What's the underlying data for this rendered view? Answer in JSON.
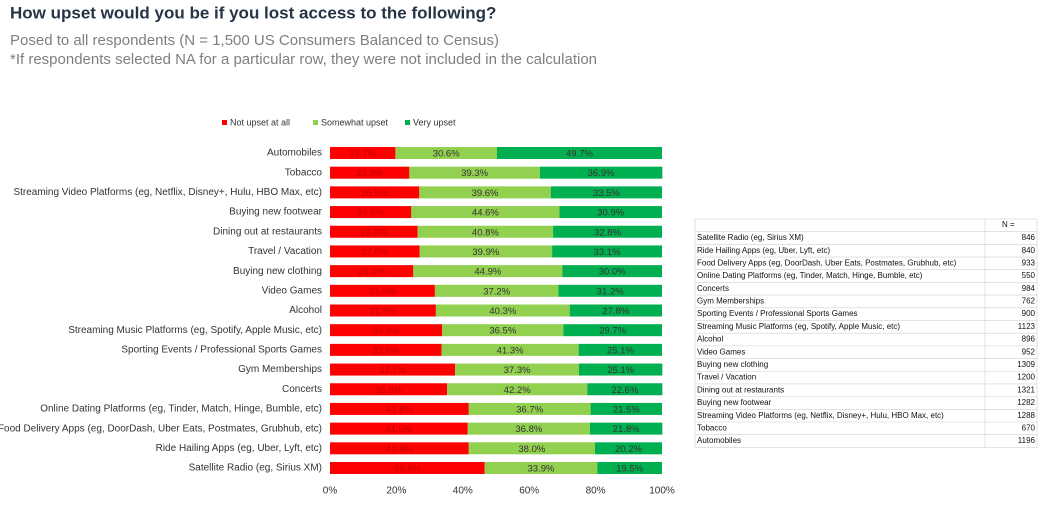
{
  "chart_data": {
    "type": "stacked-bar-horizontal",
    "title": "How upset would you be if you lost access to the following?",
    "subtitle": [
      "Posed to all respondents (N = 1,500 US Consumers Balanced to Census)",
      "*If respondents selected NA for a particular row, they were not included in the calculation"
    ],
    "categories": [
      "Automobiles",
      "Tobacco",
      "Streaming Video Platforms (eg, Netflix, Disney+, Hulu, HBO Max, etc)",
      "Buying new footwear",
      "Dining out at restaurants",
      "Travel / Vacation",
      "Buying new clothing",
      "Video Games",
      "Alcohol",
      "Streaming Music Platforms (eg, Spotify, Apple Music, etc)",
      "Sporting Events / Professional Sports Games",
      "Gym Memberships",
      "Concerts",
      "Online Dating Platforms (eg, Tinder, Match, Hinge, Bumble, etc)",
      "Food Delivery Apps (eg, DoorDash, Uber Eats, Postmates, Grubhub, etc)",
      "Ride Hailing Apps (eg, Uber, Lyft, etc)",
      "Satellite Radio (eg, Sirius XM)"
    ],
    "series": [
      {
        "name": "Not upset at all",
        "color": "#ff0000",
        "values": [
          19.7,
          23.9,
          26.9,
          24.5,
          26.4,
          27.0,
          25.1,
          31.6,
          31.9,
          33.8,
          33.6,
          37.7,
          35.3,
          41.8,
          41.5,
          41.8,
          46.6
        ],
        "value_labels": [
          "19.7%",
          "23.9%",
          "26.9%",
          "24.5%",
          "26.4%",
          "27.0%",
          "25.1%",
          "31.6%",
          "31.9%",
          "33.8%",
          "33.6%",
          "37.7%",
          "35.3%",
          "41.8%",
          "41.5%",
          "41.8%",
          "46.6%"
        ]
      },
      {
        "name": "Somewhat upset",
        "color": "#92d050",
        "values": [
          30.6,
          39.3,
          39.6,
          44.6,
          40.8,
          39.9,
          44.9,
          37.2,
          40.3,
          36.5,
          41.3,
          37.3,
          42.2,
          36.7,
          36.8,
          38.0,
          33.9
        ],
        "value_labels": [
          "30.6%",
          "39.3%",
          "39.6%",
          "44.6%",
          "40.8%",
          "39.9%",
          "44.9%",
          "37.2%",
          "40.3%",
          "36.5%",
          "41.3%",
          "37.3%",
          "42.2%",
          "36.7%",
          "36.8%",
          "38.0%",
          "33.9%"
        ]
      },
      {
        "name": "Very upset",
        "color": "#00b050",
        "values": [
          49.7,
          36.9,
          33.5,
          30.9,
          32.8,
          33.1,
          30.0,
          31.2,
          27.8,
          29.7,
          25.1,
          25.1,
          22.6,
          21.5,
          21.8,
          20.2,
          19.5
        ],
        "value_labels": [
          "49.7%",
          "36.9%",
          "33.5%",
          "30.9%",
          "32.8%",
          "33.1%",
          "30.0%",
          "31.2%",
          "27.8%",
          "29.7%",
          "25.1%",
          "25.1%",
          "22.6%",
          "21.5%",
          "21.8%",
          "20.2%",
          "19.5%"
        ]
      }
    ],
    "xlim": [
      0,
      100
    ],
    "xticks": [
      {
        "value": 0,
        "label": "0%"
      },
      {
        "value": 20,
        "label": "20%"
      },
      {
        "value": 40,
        "label": "40%"
      },
      {
        "value": 60,
        "label": "60%"
      },
      {
        "value": 80,
        "label": "80%"
      },
      {
        "value": 100,
        "label": "100%"
      }
    ],
    "legend": "top"
  },
  "table": {
    "header": "N =",
    "rows": [
      [
        "Satellite Radio (eg, Sirius XM)",
        846
      ],
      [
        "Ride Hailing Apps (eg, Uber, Lyft, etc)",
        840
      ],
      [
        "Food Delivery Apps (eg, DoorDash, Uber Eats, Postmates, Grubhub, etc)",
        933
      ],
      [
        "Online Dating Platforms (eg, Tinder, Match, Hinge, Bumble, etc)",
        550
      ],
      [
        "Concerts",
        984
      ],
      [
        "Gym Memberships",
        762
      ],
      [
        "Sporting Events / Professional Sports Games",
        900
      ],
      [
        "Streaming Music Platforms (eg, Spotify, Apple Music, etc)",
        1123
      ],
      [
        "Alcohol",
        896
      ],
      [
        "Video Games",
        952
      ],
      [
        "Buying new clothing",
        1309
      ],
      [
        "Travel / Vacation",
        1200
      ],
      [
        "Dining out at restaurants",
        1321
      ],
      [
        "Buying new footwear",
        1282
      ],
      [
        "Streaming Video Platforms (eg, Netflix, Disney+, Hulu, HBO Max, etc)",
        1288
      ],
      [
        "Tobacco",
        670
      ],
      [
        "Automobiles",
        1196
      ]
    ]
  }
}
